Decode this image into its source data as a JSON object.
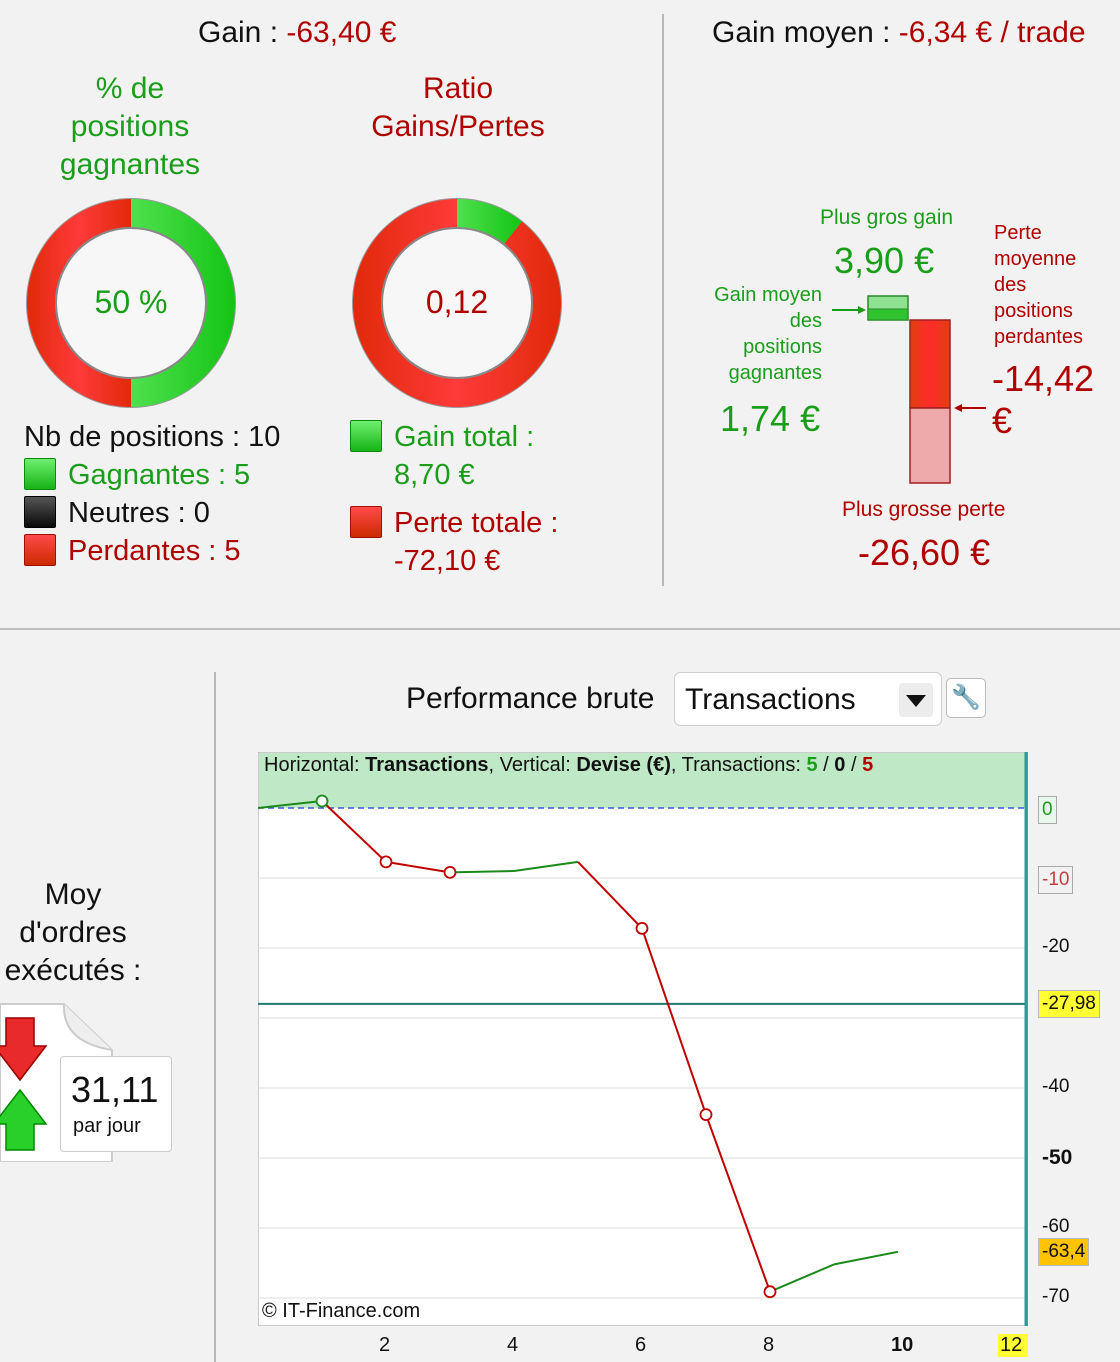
{
  "summary": {
    "gain_label": "Gain : ",
    "gain_value": "-63,40 €",
    "gain_moyen_label": "Gain moyen : ",
    "gain_moyen_value": "-6,34 € / trade"
  },
  "win_pct": {
    "title_l1": "% de",
    "title_l2": "positions",
    "title_l3": "gagnantes",
    "value": "50 %",
    "fraction": 0.5
  },
  "ratio": {
    "title_l1": "Ratio",
    "title_l2": "Gains/Pertes",
    "value": "0,12",
    "fraction": 0.107
  },
  "positions": {
    "count_label": "Nb de positions : 10",
    "gagnantes": "Gagnantes : 5",
    "neutres": "Neutres : 0",
    "perdantes": "Perdantes : 5"
  },
  "totals": {
    "gain_total_label": "Gain total :",
    "gain_total_value": "8,70 €",
    "perte_totale_label": "Perte totale :",
    "perte_totale_value": "-72,10 €"
  },
  "extremes": {
    "plus_gros_gain_label": "Plus gros gain",
    "plus_gros_gain_value": "3,90 €",
    "gain_moyen_l1": "Gain moyen",
    "gain_moyen_l2": "des",
    "gain_moyen_l3": "positions",
    "gain_moyen_l4": "gagnantes",
    "gain_moyen_value": "1,74 €",
    "perte_moy_l1": "Perte",
    "perte_moy_l2": "moyenne",
    "perte_moy_l3": "des",
    "perte_moy_l4": "positions",
    "perte_moy_l5": "perdantes",
    "perte_moy_value_l1": "-14,42",
    "perte_moy_value_l2": "€",
    "plus_grosse_perte_label": "Plus grosse perte",
    "plus_grosse_perte_value": "-26,60 €"
  },
  "orders": {
    "title_l1": "Moy",
    "title_l2": "d'ordres",
    "title_l3": "exécutés :",
    "value": "31,11",
    "unit": "par jour"
  },
  "performance": {
    "label": "Performance brute",
    "selected": "Transactions",
    "info_h_label": "Horizontal: ",
    "info_h_value": "Transactions",
    "info_v_label": ", Vertical: ",
    "info_v_value": "Devise (€)",
    "info_t_label": ", Transactions: ",
    "info_t_win": "5",
    "info_t_sep1": " / ",
    "info_t_neutral": "0",
    "info_t_sep2": " / ",
    "info_t_loss": "5",
    "copyright": "© IT-Finance.com"
  },
  "colors": {
    "green": "#1a9e1a",
    "red": "#b00000",
    "line_green": "#1b8a1b",
    "line_red": "#c00000",
    "avg_line": "#1e7a6e",
    "badge_yellow": "#ffff33",
    "badge_orange": "#ffc300"
  },
  "chart_data": {
    "type": "line",
    "x": [
      0,
      1,
      2,
      3,
      4,
      5,
      6,
      7,
      8,
      9,
      10
    ],
    "y": [
      0,
      1,
      -7.7,
      -9.2,
      -9.0,
      -7.7,
      -17.2,
      -43.8,
      -69.1,
      -65.2,
      -63.4
    ],
    "markers_at": [
      1,
      2,
      3,
      6,
      7,
      8
    ],
    "average_line": -27.98,
    "last_value": "-63,4",
    "average_value": "-27,98",
    "xlim": [
      0,
      12
    ],
    "ylim": [
      -74,
      8
    ],
    "x_ticks": [
      "2",
      "4",
      "6",
      "8",
      "10",
      "12"
    ],
    "y_ticks": [
      {
        "v": 0,
        "label": "0"
      },
      {
        "v": -10,
        "label": "-10"
      },
      {
        "v": -20,
        "label": "-20"
      },
      {
        "v": -40,
        "label": "-40"
      },
      {
        "v": -50,
        "label": "-50"
      },
      {
        "v": -60,
        "label": "-60"
      },
      {
        "v": -70,
        "label": "-70"
      }
    ],
    "grid": true
  }
}
